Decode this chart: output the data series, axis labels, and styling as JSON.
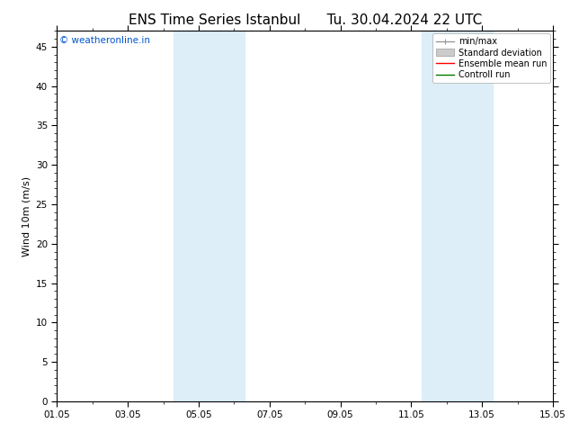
{
  "title": "ENS Time Series Istanbul      Tu. 30.04.2024 22 UTC",
  "ylabel": "Wind 10m (m/s)",
  "ylim": [
    0,
    47
  ],
  "yticks": [
    0,
    5,
    10,
    15,
    20,
    25,
    30,
    35,
    40,
    45
  ],
  "xlim_start": 0,
  "xlim_end": 14,
  "xtick_labels": [
    "01.05",
    "03.05",
    "05.05",
    "07.05",
    "09.05",
    "11.05",
    "13.05",
    "15.05"
  ],
  "xtick_positions": [
    0,
    2,
    4,
    6,
    8,
    10,
    12,
    14
  ],
  "shaded_bands": [
    {
      "xmin": 3.3,
      "xmax": 5.3
    },
    {
      "xmin": 10.3,
      "xmax": 12.3
    }
  ],
  "band_color": "#ddeef8",
  "background_color": "#ffffff",
  "watermark_text": "© weatheronline.in",
  "watermark_color": "#0055cc",
  "legend_entries": [
    {
      "label": "min/max",
      "color": "#999999",
      "lw": 1.0,
      "ls": "-"
    },
    {
      "label": "Standard deviation",
      "color": "#cccccc",
      "lw": 6,
      "ls": "-"
    },
    {
      "label": "Ensemble mean run",
      "color": "#ff0000",
      "lw": 1.0,
      "ls": "-"
    },
    {
      "label": "Controll run",
      "color": "#007700",
      "lw": 1.0,
      "ls": "-"
    }
  ],
  "title_fontsize": 11,
  "axis_fontsize": 8,
  "tick_fontsize": 7.5,
  "legend_fontsize": 7
}
